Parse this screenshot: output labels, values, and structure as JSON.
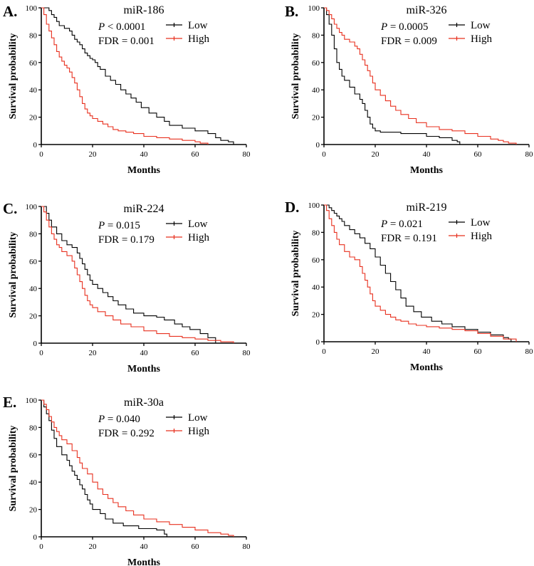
{
  "chart_data": [
    {
      "type": "line",
      "panel": "A.",
      "title": "miR-186",
      "p_label": "P",
      "p_text": " < 0.0001",
      "fdr_text": "FDR = 0.001",
      "xlabel": "Months",
      "ylabel": "Survival probability",
      "xlim": [
        0,
        80
      ],
      "ylim": [
        0,
        100
      ],
      "xticks": [
        "0",
        "20",
        "40",
        "60",
        "80"
      ],
      "yticks": [
        "0",
        "20",
        "40",
        "60",
        "80",
        "100"
      ],
      "legend_position": "top-right",
      "series": [
        {
          "name": "Low",
          "color": "#000000",
          "x": [
            0,
            3,
            4,
            5,
            6,
            7,
            9,
            11,
            12,
            13,
            14,
            15,
            16,
            17,
            18,
            19,
            20,
            21,
            22,
            23,
            25,
            27,
            29,
            31,
            33,
            35,
            37,
            39,
            42,
            45,
            48,
            50,
            55,
            60,
            65,
            68,
            70,
            73,
            75
          ],
          "y": [
            100,
            98,
            95,
            93,
            90,
            87,
            85,
            83,
            80,
            77,
            75,
            73,
            70,
            67,
            65,
            63,
            62,
            60,
            57,
            55,
            50,
            47,
            44,
            40,
            37,
            34,
            31,
            27,
            23,
            20,
            17,
            14,
            12,
            10,
            8,
            5,
            3,
            2,
            0
          ]
        },
        {
          "name": "High",
          "color": "#e8301f",
          "x": [
            0,
            1,
            2,
            3,
            4,
            5,
            6,
            7,
            8,
            9,
            10,
            11,
            12,
            13,
            14,
            15,
            16,
            17,
            18,
            19,
            20,
            22,
            24,
            26,
            28,
            30,
            33,
            36,
            40,
            45,
            50,
            55,
            60,
            62,
            65
          ],
          "y": [
            100,
            95,
            88,
            83,
            78,
            73,
            68,
            64,
            61,
            58,
            56,
            53,
            49,
            45,
            40,
            35,
            30,
            26,
            23,
            21,
            19,
            17,
            15,
            13,
            11,
            10,
            9,
            8,
            6,
            5,
            4,
            3,
            2,
            1,
            0
          ]
        }
      ]
    },
    {
      "type": "line",
      "panel": "B.",
      "title": "miR-326",
      "p_label": "P",
      "p_text": " = 0.0005",
      "fdr_text": "FDR = 0.009",
      "xlabel": "Months",
      "ylabel": "Survival probability",
      "xlim": [
        0,
        80
      ],
      "ylim": [
        0,
        100
      ],
      "xticks": [
        "0",
        "20",
        "40",
        "60",
        "80"
      ],
      "yticks": [
        "0",
        "20",
        "40",
        "60",
        "80",
        "100"
      ],
      "legend_position": "top-right",
      "series": [
        {
          "name": "Low",
          "color": "#000000",
          "x": [
            0,
            1,
            2,
            3,
            4,
            5,
            6,
            7,
            8,
            10,
            12,
            14,
            15,
            16,
            17,
            18,
            19,
            20,
            22,
            30,
            40,
            45,
            50,
            52,
            53
          ],
          "y": [
            100,
            95,
            88,
            80,
            70,
            60,
            55,
            50,
            47,
            42,
            37,
            33,
            30,
            25,
            20,
            15,
            12,
            10,
            9,
            8,
            6,
            5,
            3,
            2,
            0
          ]
        },
        {
          "name": "High",
          "color": "#e8301f",
          "x": [
            0,
            1,
            2,
            3,
            4,
            5,
            6,
            7,
            8,
            10,
            12,
            13,
            14,
            15,
            16,
            17,
            18,
            19,
            20,
            22,
            24,
            26,
            28,
            30,
            33,
            36,
            40,
            45,
            50,
            55,
            60,
            65,
            68,
            70,
            72,
            75
          ],
          "y": [
            100,
            98,
            95,
            92,
            88,
            85,
            82,
            80,
            77,
            75,
            72,
            70,
            66,
            62,
            58,
            54,
            50,
            45,
            40,
            36,
            32,
            28,
            25,
            22,
            19,
            16,
            13,
            11,
            10,
            8,
            6,
            4,
            3,
            2,
            1,
            0
          ]
        }
      ]
    },
    {
      "type": "line",
      "panel": "C.",
      "title": "miR-224",
      "p_label": "P",
      "p_text": " = 0.015",
      "fdr_text": "FDR = 0.179",
      "xlabel": "Months",
      "ylabel": "Survival probability",
      "xlim": [
        0,
        80
      ],
      "ylim": [
        0,
        100
      ],
      "xticks": [
        "0",
        "20",
        "40",
        "60",
        "80"
      ],
      "yticks": [
        "0",
        "20",
        "40",
        "60",
        "80",
        "100"
      ],
      "legend_position": "top-right",
      "series": [
        {
          "name": "Low",
          "color": "#000000",
          "x": [
            0,
            2,
            3,
            4,
            6,
            8,
            10,
            12,
            14,
            15,
            16,
            17,
            18,
            19,
            20,
            22,
            24,
            26,
            28,
            30,
            33,
            36,
            40,
            45,
            48,
            52,
            55,
            58,
            62,
            65,
            68
          ],
          "y": [
            100,
            95,
            90,
            85,
            80,
            75,
            72,
            70,
            66,
            62,
            58,
            54,
            50,
            46,
            43,
            40,
            37,
            34,
            31,
            28,
            25,
            22,
            20,
            19,
            17,
            14,
            12,
            10,
            7,
            4,
            0
          ]
        },
        {
          "name": "High",
          "color": "#e8301f",
          "x": [
            0,
            1,
            2,
            3,
            4,
            5,
            6,
            7,
            8,
            10,
            12,
            13,
            14,
            15,
            16,
            17,
            18,
            19,
            20,
            22,
            25,
            28,
            31,
            35,
            40,
            45,
            50,
            55,
            60,
            65,
            70,
            75
          ],
          "y": [
            100,
            96,
            90,
            85,
            80,
            76,
            72,
            70,
            67,
            64,
            60,
            55,
            50,
            45,
            40,
            35,
            31,
            28,
            26,
            23,
            20,
            17,
            14,
            12,
            9,
            7,
            5,
            4,
            3,
            2,
            1,
            0
          ]
        }
      ]
    },
    {
      "type": "line",
      "panel": "D.",
      "title": "miR-219",
      "p_label": "P",
      "p_text": " = 0.021",
      "fdr_text": "FDR = 0.191",
      "xlabel": "Months",
      "ylabel": "Survival probability",
      "xlim": [
        0,
        80
      ],
      "ylim": [
        0,
        100
      ],
      "xticks": [
        "0",
        "20",
        "40",
        "60",
        "80"
      ],
      "yticks": [
        "0",
        "20",
        "40",
        "60",
        "80",
        "100"
      ],
      "legend_position": "top-right",
      "series": [
        {
          "name": "Low",
          "color": "#000000",
          "x": [
            0,
            2,
            3,
            4,
            5,
            6,
            7,
            8,
            10,
            12,
            14,
            16,
            18,
            20,
            22,
            24,
            26,
            28,
            30,
            32,
            35,
            38,
            42,
            46,
            50,
            55,
            60,
            65,
            70,
            72,
            73
          ],
          "y": [
            100,
            98,
            96,
            94,
            92,
            90,
            88,
            85,
            82,
            79,
            76,
            72,
            68,
            62,
            56,
            50,
            44,
            38,
            32,
            26,
            22,
            18,
            15,
            13,
            11,
            9,
            7,
            5,
            3,
            2,
            0
          ]
        },
        {
          "name": "High",
          "color": "#e8301f",
          "x": [
            0,
            1,
            2,
            3,
            4,
            5,
            6,
            8,
            10,
            12,
            14,
            15,
            16,
            17,
            18,
            19,
            20,
            22,
            24,
            26,
            28,
            30,
            33,
            36,
            40,
            45,
            50,
            55,
            60,
            65,
            70,
            75
          ],
          "y": [
            100,
            96,
            90,
            85,
            80,
            75,
            71,
            66,
            62,
            60,
            55,
            50,
            45,
            40,
            35,
            30,
            26,
            23,
            20,
            18,
            16,
            15,
            13,
            12,
            11,
            10,
            9,
            8,
            6,
            4,
            2,
            0
          ]
        }
      ]
    },
    {
      "type": "line",
      "panel": "E.",
      "title": "miR-30a",
      "p_label": "P",
      "p_text": " = 0.040",
      "fdr_text": "FDR = 0.292",
      "xlabel": "Months",
      "ylabel": "Survival probability",
      "xlim": [
        0,
        80
      ],
      "ylim": [
        0,
        100
      ],
      "xticks": [
        "0",
        "20",
        "40",
        "60",
        "80"
      ],
      "yticks": [
        "0",
        "20",
        "40",
        "60",
        "80",
        "100"
      ],
      "legend_position": "top-right",
      "series": [
        {
          "name": "Low",
          "color": "#000000",
          "x": [
            0,
            1,
            2,
            3,
            4,
            5,
            6,
            8,
            10,
            11,
            12,
            13,
            14,
            15,
            16,
            17,
            18,
            19,
            20,
            23,
            25,
            28,
            32,
            38,
            45,
            48,
            49
          ],
          "y": [
            100,
            95,
            90,
            85,
            78,
            72,
            66,
            60,
            56,
            52,
            48,
            45,
            42,
            38,
            35,
            31,
            27,
            24,
            20,
            17,
            13,
            10,
            8,
            6,
            5,
            2,
            0
          ]
        },
        {
          "name": "High",
          "color": "#e8301f",
          "x": [
            0,
            1,
            2,
            3,
            4,
            5,
            6,
            7,
            8,
            10,
            12,
            14,
            15,
            16,
            18,
            20,
            22,
            24,
            26,
            28,
            30,
            33,
            36,
            40,
            45,
            50,
            55,
            60,
            65,
            70,
            73,
            75
          ],
          "y": [
            100,
            97,
            93,
            88,
            84,
            80,
            77,
            74,
            71,
            68,
            63,
            58,
            54,
            50,
            46,
            40,
            35,
            31,
            28,
            25,
            22,
            19,
            16,
            13,
            11,
            9,
            7,
            5,
            3,
            2,
            1,
            0
          ]
        }
      ]
    }
  ]
}
